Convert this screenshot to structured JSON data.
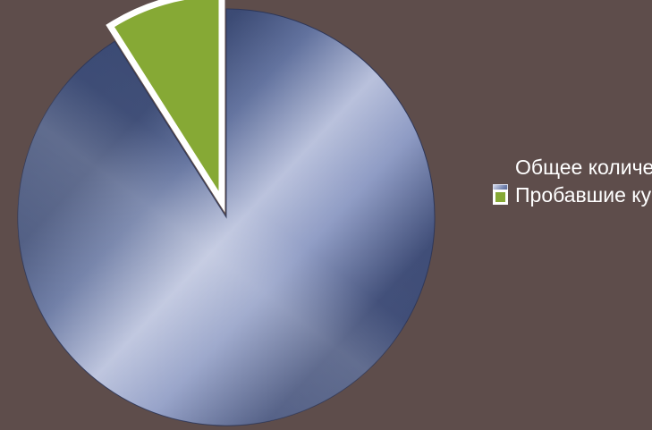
{
  "chart_data": {
    "type": "pie",
    "title": "",
    "legend_position": "right",
    "series": [
      {
        "name": "Общее количесво человек",
        "value": 91,
        "color": "#4a5a8a",
        "exploded": false
      },
      {
        "name": "Пробавшие курить",
        "value": 9,
        "color": "#86a935",
        "exploded": true
      }
    ]
  },
  "legend": {
    "items": [
      {
        "label": "Общее количесво человек",
        "icon": "gradient-blue-square-swatch",
        "color": "#4a5a8a"
      },
      {
        "label": "Пробавшие курить",
        "icon": "green-square-swatch",
        "color": "#86a935"
      }
    ]
  }
}
